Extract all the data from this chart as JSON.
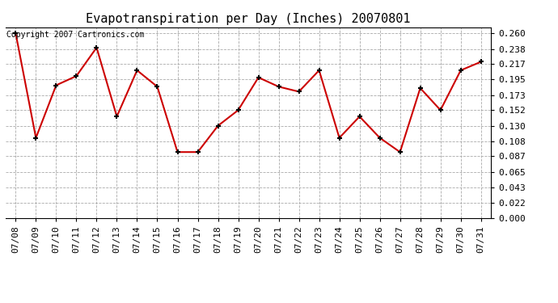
{
  "title": "Evapotranspiration per Day (Inches) 20070801",
  "copyright_text": "Copyright 2007 Cartronics.com",
  "x_labels": [
    "07/08",
    "07/09",
    "07/10",
    "07/11",
    "07/12",
    "07/13",
    "07/14",
    "07/15",
    "07/16",
    "07/17",
    "07/18",
    "07/19",
    "07/20",
    "07/21",
    "07/22",
    "07/23",
    "07/24",
    "07/25",
    "07/26",
    "07/27",
    "07/28",
    "07/29",
    "07/30",
    "07/31"
  ],
  "y_values": [
    0.26,
    0.113,
    0.187,
    0.2,
    0.24,
    0.143,
    0.208,
    0.185,
    0.093,
    0.093,
    0.13,
    0.152,
    0.198,
    0.185,
    0.178,
    0.208,
    0.113,
    0.143,
    0.113,
    0.093,
    0.183,
    0.152,
    0.208,
    0.22
  ],
  "line_color": "#cc0000",
  "marker": "+",
  "marker_size": 5,
  "marker_color": "#000000",
  "marker_linewidth": 1.5,
  "line_width": 1.5,
  "y_ticks": [
    0.0,
    0.022,
    0.043,
    0.065,
    0.087,
    0.108,
    0.13,
    0.152,
    0.173,
    0.195,
    0.217,
    0.238,
    0.26
  ],
  "ylim": [
    0.0,
    0.2686
  ],
  "background_color": "#ffffff",
  "grid_color": "#aaaaaa",
  "grid_style": "--",
  "title_fontsize": 11,
  "tick_fontsize": 8,
  "copyright_fontsize": 7
}
